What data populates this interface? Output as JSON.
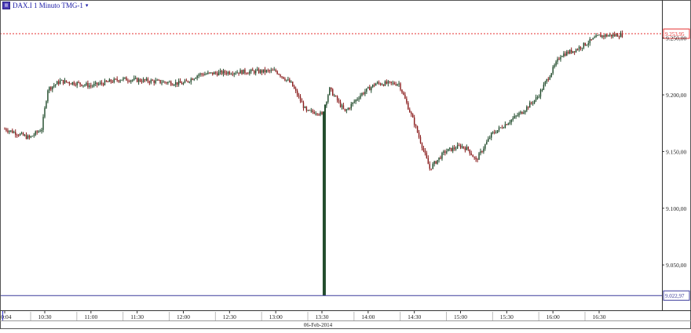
{
  "header": {
    "title": "DAX.I 1 Minuto TMG-1",
    "icon": "chart-window-icon",
    "dropdown_icon": "dropdown-arrow-icon",
    "dropdown_glyph": "▾"
  },
  "colors": {
    "up": "#1f4a2a",
    "down": "#8a1c1c",
    "wick": "#111111",
    "ref_high": "#e53030",
    "ref_low": "#3a3a9a",
    "axis": "#333333",
    "text": "#222222"
  },
  "chart_data": {
    "type": "candlestick",
    "title": "DAX.I 1 Minuto TMG-1",
    "date_label": "06-Feb-2014",
    "x_ticks": [
      "10:04",
      "10:30",
      "11:00",
      "11:30",
      "12:00",
      "12:30",
      "13:00",
      "13:30",
      "14:00",
      "14:30",
      "15:00",
      "15:30",
      "16:00",
      "16:30"
    ],
    "y_ticks": [
      "9.050,00",
      "9.100,00",
      "9.150,00",
      "9.200,00",
      "9.250,00"
    ],
    "y_tick_values": [
      9050,
      9100,
      9150,
      9200,
      9250
    ],
    "ylim": [
      9010,
      9274
    ],
    "time_range": [
      "10:04",
      "16:45"
    ],
    "price_path": [
      [
        "10:04",
        9170
      ],
      [
        "10:20",
        9162
      ],
      [
        "10:28",
        9170
      ],
      [
        "10:32",
        9205
      ],
      [
        "10:40",
        9212
      ],
      [
        "10:52",
        9210
      ],
      [
        "11:00",
        9208
      ],
      [
        "11:20",
        9214
      ],
      [
        "11:40",
        9212
      ],
      [
        "12:00",
        9210
      ],
      [
        "12:10",
        9218
      ],
      [
        "12:30",
        9220
      ],
      [
        "13:00",
        9221
      ],
      [
        "13:10",
        9210
      ],
      [
        "13:20",
        9185
      ],
      [
        "13:27",
        9185
      ],
      [
        "13:30",
        9182
      ],
      [
        "13:35",
        9205
      ],
      [
        "13:45",
        9185
      ],
      [
        "13:55",
        9200
      ],
      [
        "14:05",
        9210
      ],
      [
        "14:20",
        9210
      ],
      [
        "14:30",
        9175
      ],
      [
        "14:40",
        9135
      ],
      [
        "14:50",
        9150
      ],
      [
        "15:00",
        9155
      ],
      [
        "15:05",
        9152
      ],
      [
        "15:10",
        9142
      ],
      [
        "15:20",
        9165
      ],
      [
        "15:40",
        9185
      ],
      [
        "15:50",
        9198
      ],
      [
        "16:05",
        9235
      ],
      [
        "16:15",
        9240
      ],
      [
        "16:30",
        9252
      ],
      [
        "16:45",
        9253
      ]
    ],
    "spike": {
      "time": "13:31",
      "low": 9022.97
    },
    "ref_lines": [
      {
        "label": "9.253,95",
        "value": 9253.95,
        "style": "dotted",
        "color": "#e53030"
      },
      {
        "label": "9.022,97",
        "value": 9022.97,
        "style": "solid",
        "color": "#3a3a9a"
      }
    ],
    "grid": false
  }
}
